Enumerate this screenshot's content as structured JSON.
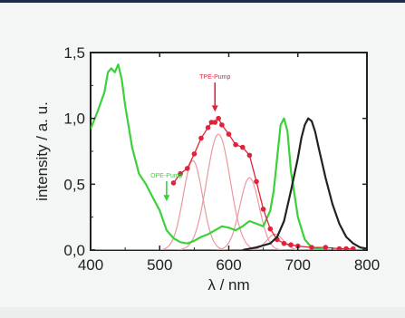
{
  "chart_data": {
    "type": "line",
    "xlabel": "λ / nm",
    "ylabel": "intensity / a. u.",
    "xlim": [
      400,
      800
    ],
    "ylim": [
      0,
      1.5
    ],
    "xticks": [
      "400",
      "500",
      "600",
      "700",
      "800"
    ],
    "yticks": [
      "0,0",
      "0,5",
      "1,0",
      "1,5"
    ],
    "annotations": [
      {
        "text": "TPE-Pump",
        "x": 580,
        "y": 1.3,
        "arrow_to_y": 1.05,
        "color": "#e0233a"
      },
      {
        "text": "OPE-Pump",
        "x": 510,
        "y": 0.55,
        "arrow_to_y": 0.37,
        "color": "#3ad13a"
      }
    ],
    "series": [
      {
        "style": "green-line",
        "color": "#3ad13a",
        "x": [
          400,
          410,
          420,
          425,
          430,
          435,
          440,
          445,
          450,
          460,
          470,
          480,
          490,
          500,
          510,
          520,
          530,
          540,
          550,
          560,
          570,
          580,
          590,
          600,
          610,
          620,
          630,
          640,
          650,
          660,
          665,
          670,
          675,
          680,
          685,
          690,
          700,
          710,
          720,
          740,
          760,
          780,
          800
        ],
        "y": [
          0.92,
          1.05,
          1.2,
          1.35,
          1.38,
          1.35,
          1.41,
          1.3,
          1.1,
          0.78,
          0.58,
          0.5,
          0.4,
          0.3,
          0.15,
          0.09,
          0.06,
          0.05,
          0.07,
          0.1,
          0.12,
          0.15,
          0.18,
          0.17,
          0.15,
          0.18,
          0.22,
          0.2,
          0.18,
          0.3,
          0.45,
          0.7,
          0.95,
          1.0,
          0.9,
          0.6,
          0.25,
          0.08,
          0.02,
          0,
          0,
          0,
          0
        ]
      },
      {
        "style": "red-dots-line",
        "color": "#e0233a",
        "x": [
          520,
          530,
          540,
          550,
          560,
          570,
          575,
          580,
          585,
          590,
          600,
          610,
          620,
          630,
          640,
          650,
          660,
          670,
          680,
          690,
          700,
          720,
          740,
          760,
          770,
          780
        ],
        "y": [
          0.51,
          0.58,
          0.62,
          0.73,
          0.85,
          0.93,
          0.97,
          0.97,
          1.0,
          0.95,
          0.88,
          0.8,
          0.78,
          0.72,
          0.52,
          0.31,
          0.16,
          0.08,
          0.05,
          0.04,
          0.03,
          0.02,
          0.02,
          0.01,
          0.01,
          0.01
        ]
      },
      {
        "style": "black-line",
        "color": "#222222",
        "x": [
          620,
          640,
          660,
          670,
          680,
          690,
          700,
          705,
          710,
          715,
          720,
          725,
          730,
          740,
          750,
          760,
          770,
          780,
          790,
          800
        ],
        "y": [
          0,
          0.02,
          0.05,
          0.1,
          0.22,
          0.45,
          0.7,
          0.85,
          0.95,
          1.0,
          0.98,
          0.9,
          0.78,
          0.55,
          0.35,
          0.2,
          0.1,
          0.05,
          0.02,
          0.01
        ]
      }
    ],
    "gaussian_components": [
      {
        "color": "#e89aa0",
        "center": 548,
        "amplitude": 0.68,
        "width": 14
      },
      {
        "color": "#e89aa0",
        "center": 585,
        "amplitude": 0.88,
        "width": 17
      },
      {
        "color": "#e89aa0",
        "center": 630,
        "amplitude": 0.55,
        "width": 14
      },
      {
        "color": "#e89aa0",
        "center": 667,
        "amplitude": 0.12,
        "width": 12
      }
    ]
  }
}
